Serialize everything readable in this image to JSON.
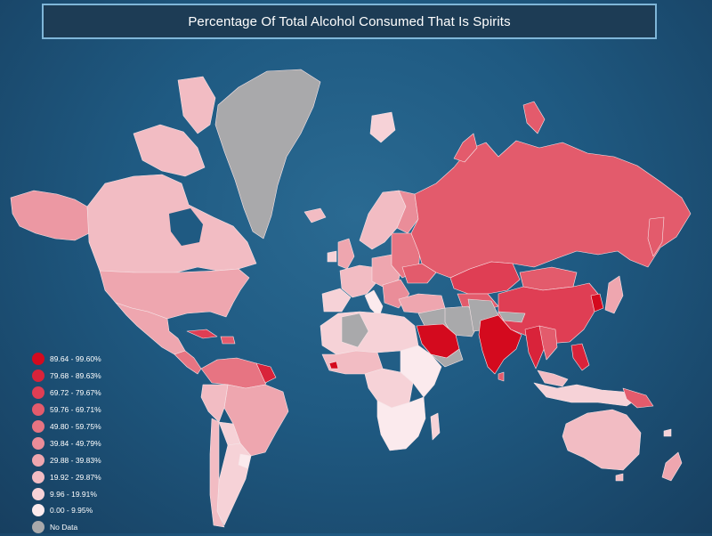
{
  "title": "Percentage Of Total Alcohol Consumed That Is Spirits",
  "legend": [
    {
      "label": "89.64 - 99.60%",
      "color": "#d40a1e"
    },
    {
      "label": "79.68 - 89.63%",
      "color": "#d9233a"
    },
    {
      "label": "69.72 - 79.67%",
      "color": "#df3e54"
    },
    {
      "label": "59.76 - 69.71%",
      "color": "#e35b6c"
    },
    {
      "label": "49.80 - 59.75%",
      "color": "#e77482"
    },
    {
      "label": "39.84 - 49.79%",
      "color": "#ea8d99"
    },
    {
      "label": "29.88 - 39.83%",
      "color": "#eea6af"
    },
    {
      "label": "19.92 - 29.87%",
      "color": "#f2bcc3"
    },
    {
      "label": "9.96 - 19.91%",
      "color": "#f6d2d7"
    },
    {
      "label": "0.00 - 9.95%",
      "color": "#fbeaed"
    },
    {
      "label": "No Data",
      "color": "#a9a9ab"
    }
  ]
}
